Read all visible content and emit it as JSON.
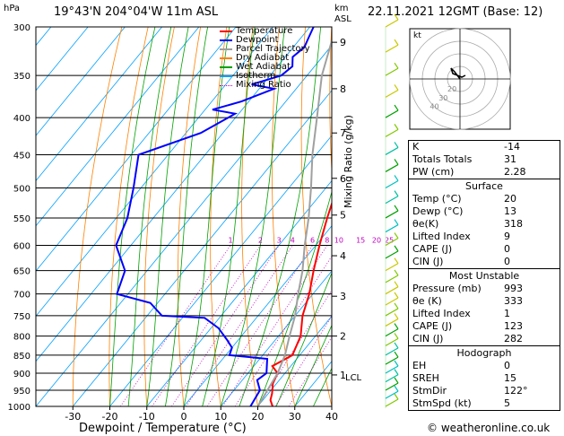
{
  "header": {
    "location": "19°43'N  204°04'W  11m  ASL",
    "datetime": "22.11.2021  12GMT  (Base: 12)"
  },
  "axes": {
    "left_unit": "hPa",
    "right_unit_line1": "km",
    "right_unit_line2": "ASL",
    "xlabel": "Dewpoint / Temperature (°C)",
    "right_label": "Mixing Ratio (g/kg)",
    "lcl_label": "LCL"
  },
  "legend": [
    {
      "label": "Temperature",
      "color": "#ff0000"
    },
    {
      "label": "Dewpoint",
      "color": "#0000ff"
    },
    {
      "label": "Parcel Trajectory",
      "color": "#a0a0a0"
    },
    {
      "label": "Dry Adiabat",
      "color": "#ff8000"
    },
    {
      "label": "Wet Adiabat",
      "color": "#00a000"
    },
    {
      "label": "Isotherm",
      "color": "#00a0ff"
    },
    {
      "label": "Mixing Ratio",
      "color": "#c000c0"
    }
  ],
  "chart_data": {
    "type": "line",
    "pressure_levels": [
      300,
      350,
      400,
      450,
      500,
      550,
      600,
      650,
      700,
      750,
      800,
      850,
      900,
      950,
      1000
    ],
    "x_ticks": [
      -30,
      -20,
      -10,
      0,
      10,
      20,
      30,
      40
    ],
    "xlim": [
      -40,
      40
    ],
    "ylim": [
      1000,
      300
    ],
    "km_ticks": [
      {
        "label": "9",
        "p": 315
      },
      {
        "label": "8",
        "p": 365
      },
      {
        "label": "7",
        "p": 420
      },
      {
        "label": "6",
        "p": 485
      },
      {
        "label": "5",
        "p": 545
      },
      {
        "label": "4",
        "p": 620
      },
      {
        "label": "3",
        "p": 705
      },
      {
        "label": "2",
        "p": 800
      },
      {
        "label": "1",
        "p": 905
      }
    ],
    "mixing_ratio_labels": [
      "1",
      "2",
      "3",
      "4",
      "6",
      "8",
      "10",
      "15",
      "20",
      "25"
    ],
    "series": [
      {
        "name": "Temperature",
        "points": [
          [
            -31,
            300
          ],
          [
            -26,
            330
          ],
          [
            -24,
            350
          ],
          [
            -22,
            380
          ],
          [
            -18,
            400
          ],
          [
            -13,
            450
          ],
          [
            -7,
            500
          ],
          [
            -3,
            550
          ],
          [
            1,
            600
          ],
          [
            5,
            650
          ],
          [
            9,
            700
          ],
          [
            12,
            750
          ],
          [
            16,
            800
          ],
          [
            18,
            850
          ],
          [
            15,
            880
          ],
          [
            18,
            900
          ],
          [
            19,
            930
          ],
          [
            21,
            960
          ],
          [
            22,
            980
          ],
          [
            24,
            1000
          ]
        ]
      },
      {
        "name": "Dewpoint",
        "points": [
          [
            -49,
            300
          ],
          [
            -48,
            310
          ],
          [
            -47,
            320
          ],
          [
            -48,
            330
          ],
          [
            -46,
            340
          ],
          [
            -47,
            350
          ],
          [
            -53,
            360
          ],
          [
            -46,
            365
          ],
          [
            -52,
            380
          ],
          [
            -58,
            390
          ],
          [
            -51,
            395
          ],
          [
            -52,
            400
          ],
          [
            -56,
            420
          ],
          [
            -68,
            450
          ],
          [
            -62,
            500
          ],
          [
            -57,
            550
          ],
          [
            -54,
            600
          ],
          [
            -46,
            650
          ],
          [
            -43,
            700
          ],
          [
            -32,
            720
          ],
          [
            -26,
            750
          ],
          [
            -14,
            755
          ],
          [
            -8,
            780
          ],
          [
            -3,
            810
          ],
          [
            0,
            830
          ],
          [
            1,
            850
          ],
          [
            12,
            860
          ],
          [
            15,
            900
          ],
          [
            14,
            920
          ],
          [
            17,
            950
          ],
          [
            18,
            1000
          ]
        ]
      },
      {
        "name": "Parcel Trajectory",
        "points": [
          [
            -43,
            300
          ],
          [
            -36,
            350
          ],
          [
            -28,
            400
          ],
          [
            -21,
            450
          ],
          [
            -14,
            500
          ],
          [
            -8,
            550
          ],
          [
            -3,
            600
          ],
          [
            2,
            650
          ],
          [
            6,
            700
          ],
          [
            10,
            750
          ],
          [
            13,
            800
          ],
          [
            16,
            850
          ],
          [
            18,
            900
          ],
          [
            19,
            950
          ],
          [
            20,
            1000
          ]
        ]
      }
    ]
  },
  "hodograph": {
    "label": "kt",
    "ring_labels": [
      "20",
      "30",
      "40"
    ]
  },
  "indices": [
    {
      "label": "K",
      "value": "-14"
    },
    {
      "label": "Totals Totals",
      "value": "31"
    },
    {
      "label": "PW (cm)",
      "value": "2.28"
    }
  ],
  "surface": {
    "title": "Surface",
    "rows": [
      {
        "label": "Temp (°C)",
        "value": "20"
      },
      {
        "label": "Dewp (°C)",
        "value": "13"
      },
      {
        "label": "θe(K)",
        "value": "318"
      },
      {
        "label": "Lifted Index",
        "value": "9"
      },
      {
        "label": "CAPE (J)",
        "value": "0"
      },
      {
        "label": "CIN (J)",
        "value": "0"
      }
    ]
  },
  "most_unstable": {
    "title": "Most Unstable",
    "rows": [
      {
        "label": "Pressure (mb)",
        "value": "993"
      },
      {
        "label": "θe (K)",
        "value": "333"
      },
      {
        "label": "Lifted Index",
        "value": "1"
      },
      {
        "label": "CAPE (J)",
        "value": "123"
      },
      {
        "label": "CIN (J)",
        "value": "282"
      }
    ]
  },
  "hodo_table": {
    "title": "Hodograph",
    "rows": [
      {
        "label": "EH",
        "value": "0"
      },
      {
        "label": "SREH",
        "value": "15"
      },
      {
        "label": "StmDir",
        "value": "122°"
      },
      {
        "label": "StmSpd (kt)",
        "value": "5"
      }
    ]
  },
  "credit": "© weatheronline.co.uk"
}
